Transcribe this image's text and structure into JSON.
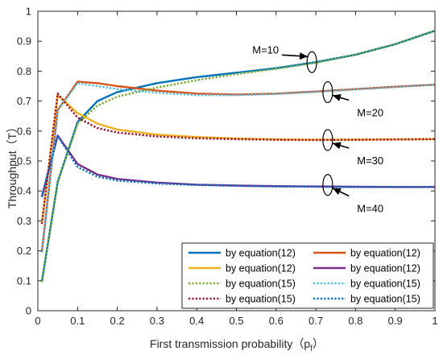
{
  "chart_data": {
    "type": "line",
    "title": "",
    "xlabel": "First transmission probability（p",
    "xlabel_sub": "f",
    "xlabel_close": "）",
    "ylabel": "Throughput（T）",
    "xlim": [
      0,
      1
    ],
    "ylim": [
      0,
      1
    ],
    "xticks": [
      "0",
      "0.1",
      "0.2",
      "0.3",
      "0.4",
      "0.5",
      "0.6",
      "0.7",
      "0.8",
      "0.9",
      "1"
    ],
    "yticks": [
      "0",
      "0.1",
      "0.2",
      "0.3",
      "0.4",
      "0.5",
      "0.6",
      "0.7",
      "0.8",
      "0.9",
      "1"
    ],
    "grid": false,
    "legend_position": "bottom-right",
    "series": [
      {
        "name": "by equation(12)",
        "color": "#0072BD",
        "style": "solid",
        "x": [
          0.01,
          0.05,
          0.1,
          0.15,
          0.2,
          0.3,
          0.4,
          0.5,
          0.6,
          0.7,
          0.8,
          0.9,
          1.0
        ],
        "y": [
          0.096,
          0.43,
          0.63,
          0.7,
          0.73,
          0.76,
          0.78,
          0.795,
          0.81,
          0.83,
          0.855,
          0.89,
          0.935
        ]
      },
      {
        "name": "by equation(12)",
        "color": "#D95319",
        "style": "solid",
        "x": [
          0.01,
          0.05,
          0.1,
          0.15,
          0.2,
          0.3,
          0.4,
          0.5,
          0.6,
          0.7,
          0.8,
          0.9,
          1.0
        ],
        "y": [
          0.195,
          0.67,
          0.765,
          0.76,
          0.75,
          0.735,
          0.725,
          0.722,
          0.725,
          0.732,
          0.74,
          0.748,
          0.755
        ]
      },
      {
        "name": "by equation(12)",
        "color": "#EDB120",
        "style": "solid",
        "x": [
          0.01,
          0.05,
          0.1,
          0.15,
          0.2,
          0.3,
          0.4,
          0.5,
          0.6,
          0.7,
          0.8,
          0.9,
          1.0
        ],
        "y": [
          0.29,
          0.72,
          0.66,
          0.625,
          0.605,
          0.588,
          0.58,
          0.575,
          0.572,
          0.571,
          0.571,
          0.572,
          0.573
        ]
      },
      {
        "name": "by equation(12)",
        "color": "#7E2F8E",
        "style": "solid",
        "x": [
          0.01,
          0.05,
          0.1,
          0.15,
          0.2,
          0.3,
          0.4,
          0.5,
          0.6,
          0.7,
          0.8,
          0.9,
          1.0
        ],
        "y": [
          0.38,
          0.585,
          0.49,
          0.455,
          0.44,
          0.428,
          0.421,
          0.418,
          0.416,
          0.415,
          0.414,
          0.413,
          0.413
        ]
      },
      {
        "name": "by equation(15)",
        "color": "#77AC30",
        "style": "dotted",
        "x": [
          0.01,
          0.05,
          0.1,
          0.15,
          0.2,
          0.3,
          0.4,
          0.5,
          0.6,
          0.7,
          0.8,
          0.9,
          1.0
        ],
        "y": [
          0.096,
          0.43,
          0.625,
          0.685,
          0.715,
          0.745,
          0.77,
          0.79,
          0.808,
          0.828,
          0.855,
          0.89,
          0.935
        ]
      },
      {
        "name": "by equation(15)",
        "color": "#4DBEEE",
        "style": "dotted",
        "x": [
          0.01,
          0.05,
          0.1,
          0.15,
          0.2,
          0.3,
          0.4,
          0.5,
          0.6,
          0.7,
          0.8,
          0.9,
          1.0
        ],
        "y": [
          0.195,
          0.67,
          0.76,
          0.75,
          0.74,
          0.728,
          0.72,
          0.72,
          0.724,
          0.731,
          0.739,
          0.747,
          0.755
        ]
      },
      {
        "name": "by equation(15)",
        "color": "#A2142F",
        "style": "dotted",
        "x": [
          0.01,
          0.05,
          0.1,
          0.15,
          0.2,
          0.3,
          0.4,
          0.5,
          0.6,
          0.7,
          0.8,
          0.9,
          1.0
        ],
        "y": [
          0.29,
          0.725,
          0.645,
          0.61,
          0.595,
          0.582,
          0.576,
          0.573,
          0.571,
          0.57,
          0.571,
          0.572,
          0.573
        ]
      },
      {
        "name": "by equation(15)",
        "color": "#0072BD",
        "style": "dotted",
        "x": [
          0.01,
          0.05,
          0.1,
          0.15,
          0.2,
          0.3,
          0.4,
          0.5,
          0.6,
          0.7,
          0.8,
          0.9,
          1.0
        ],
        "y": [
          0.38,
          0.585,
          0.48,
          0.448,
          0.435,
          0.425,
          0.42,
          0.417,
          0.415,
          0.414,
          0.413,
          0.413,
          0.413
        ]
      }
    ],
    "annotations": [
      {
        "text": "M=10",
        "ellipse_at": [
          0.69,
          0.83
        ],
        "label_near": [
          0.55,
          0.87
        ]
      },
      {
        "text": "M=20",
        "ellipse_at": [
          0.73,
          0.73
        ],
        "label_near": [
          0.82,
          0.66
        ]
      },
      {
        "text": "M=30",
        "ellipse_at": [
          0.73,
          0.57
        ],
        "label_near": [
          0.82,
          0.5
        ]
      },
      {
        "text": "M=40",
        "ellipse_at": [
          0.73,
          0.42
        ],
        "label_near": [
          0.82,
          0.34
        ]
      }
    ]
  }
}
